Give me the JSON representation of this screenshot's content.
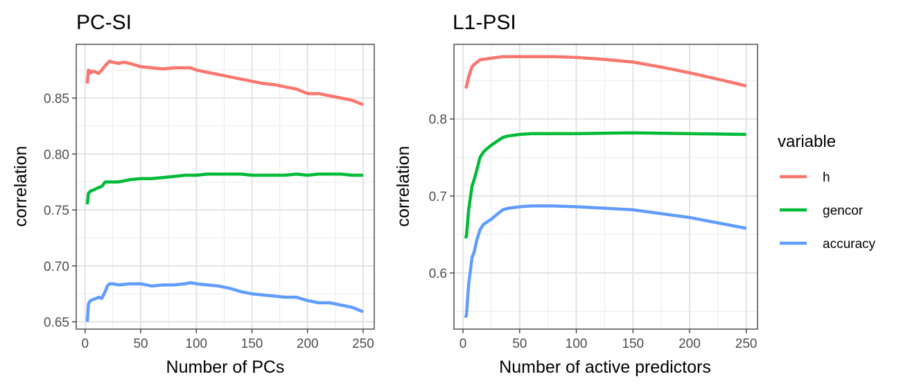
{
  "legend": {
    "title": "variable",
    "entries": [
      {
        "label": "h",
        "color": "#F8766D"
      },
      {
        "label": "gencor",
        "color": "#00BA38"
      },
      {
        "label": "accuracy",
        "color": "#619CFF"
      }
    ]
  },
  "chart_data": [
    {
      "type": "line",
      "title": "PC-SI",
      "xlabel": "Number of PCs",
      "ylabel": "correlation",
      "xlim": [
        -8,
        260
      ],
      "ylim": [
        0.6435,
        0.898
      ],
      "xticks": [
        0,
        50,
        100,
        150,
        200,
        250
      ],
      "yticks": [
        0.65,
        0.7,
        0.75,
        0.8,
        0.85
      ],
      "ytick_labels": [
        "0.65",
        "0.70",
        "0.75",
        "0.80",
        "0.85"
      ],
      "grid": true,
      "series": [
        {
          "name": "h",
          "color": "#F8766D",
          "x": [
            2,
            3,
            4,
            5,
            6,
            8,
            10,
            12,
            15,
            18,
            20,
            22,
            25,
            30,
            35,
            40,
            50,
            60,
            70,
            80,
            90,
            95,
            100,
            110,
            120,
            130,
            140,
            150,
            160,
            170,
            180,
            190,
            200,
            210,
            220,
            230,
            240,
            250
          ],
          "y": [
            0.863,
            0.875,
            0.872,
            0.874,
            0.873,
            0.874,
            0.873,
            0.872,
            0.875,
            0.879,
            0.881,
            0.883,
            0.882,
            0.881,
            0.882,
            0.881,
            0.878,
            0.877,
            0.876,
            0.877,
            0.877,
            0.877,
            0.875,
            0.873,
            0.871,
            0.869,
            0.867,
            0.865,
            0.863,
            0.862,
            0.86,
            0.858,
            0.854,
            0.854,
            0.852,
            0.85,
            0.848,
            0.844
          ]
        },
        {
          "name": "gencor",
          "color": "#00BA38",
          "x": [
            2,
            3,
            4,
            5,
            8,
            10,
            12,
            15,
            18,
            20,
            25,
            30,
            40,
            50,
            60,
            70,
            80,
            90,
            100,
            110,
            120,
            130,
            140,
            150,
            160,
            170,
            180,
            190,
            200,
            210,
            220,
            230,
            240,
            250
          ],
          "y": [
            0.755,
            0.765,
            0.766,
            0.767,
            0.768,
            0.769,
            0.77,
            0.771,
            0.775,
            0.775,
            0.775,
            0.775,
            0.777,
            0.778,
            0.778,
            0.779,
            0.78,
            0.781,
            0.781,
            0.782,
            0.782,
            0.782,
            0.782,
            0.781,
            0.781,
            0.781,
            0.781,
            0.782,
            0.781,
            0.782,
            0.782,
            0.782,
            0.781,
            0.781
          ]
        },
        {
          "name": "accuracy",
          "color": "#619CFF",
          "x": [
            2,
            3,
            4,
            5,
            7,
            10,
            12,
            15,
            18,
            20,
            22,
            25,
            30,
            40,
            50,
            60,
            70,
            80,
            90,
            95,
            100,
            110,
            120,
            130,
            140,
            150,
            160,
            170,
            180,
            190,
            200,
            210,
            220,
            230,
            240,
            250
          ],
          "y": [
            0.65,
            0.666,
            0.668,
            0.669,
            0.67,
            0.671,
            0.672,
            0.671,
            0.677,
            0.682,
            0.684,
            0.684,
            0.683,
            0.684,
            0.684,
            0.682,
            0.683,
            0.683,
            0.684,
            0.685,
            0.684,
            0.683,
            0.682,
            0.68,
            0.677,
            0.675,
            0.674,
            0.673,
            0.672,
            0.672,
            0.669,
            0.667,
            0.667,
            0.665,
            0.663,
            0.659
          ]
        }
      ]
    },
    {
      "type": "line",
      "title": "L1-PSI",
      "xlabel": "Number of active predictors",
      "ylabel": "correlation",
      "xlim": [
        -8,
        260
      ],
      "ylim": [
        0.527,
        0.897
      ],
      "xticks": [
        0,
        50,
        100,
        150,
        200,
        250
      ],
      "yticks": [
        0.6,
        0.7,
        0.8
      ],
      "ytick_labels": [
        "0.6",
        "0.7",
        "0.8"
      ],
      "grid": true,
      "series": [
        {
          "name": "h",
          "color": "#F8766D",
          "x": [
            2,
            3,
            5,
            8,
            10,
            15,
            20,
            25,
            30,
            35,
            40,
            50,
            60,
            80,
            100,
            120,
            150,
            180,
            200,
            230,
            250
          ],
          "y": [
            0.84,
            0.842,
            0.855,
            0.868,
            0.871,
            0.877,
            0.878,
            0.879,
            0.88,
            0.881,
            0.881,
            0.881,
            0.881,
            0.881,
            0.88,
            0.878,
            0.874,
            0.866,
            0.86,
            0.85,
            0.843
          ]
        },
        {
          "name": "gencor",
          "color": "#00BA38",
          "x": [
            2,
            3,
            5,
            8,
            10,
            12,
            15,
            18,
            20,
            25,
            30,
            35,
            40,
            50,
            60,
            80,
            100,
            150,
            200,
            250
          ],
          "y": [
            0.645,
            0.648,
            0.682,
            0.713,
            0.722,
            0.733,
            0.75,
            0.757,
            0.76,
            0.766,
            0.771,
            0.776,
            0.778,
            0.78,
            0.781,
            0.781,
            0.781,
            0.782,
            0.781,
            0.78
          ]
        },
        {
          "name": "accuracy",
          "color": "#619CFF",
          "x": [
            2,
            3,
            5,
            8,
            10,
            12,
            15,
            18,
            20,
            25,
            30,
            35,
            40,
            50,
            60,
            80,
            100,
            150,
            200,
            250
          ],
          "y": [
            0.542,
            0.545,
            0.585,
            0.62,
            0.628,
            0.642,
            0.656,
            0.663,
            0.665,
            0.67,
            0.676,
            0.682,
            0.684,
            0.686,
            0.687,
            0.687,
            0.686,
            0.682,
            0.672,
            0.658
          ]
        }
      ]
    }
  ]
}
